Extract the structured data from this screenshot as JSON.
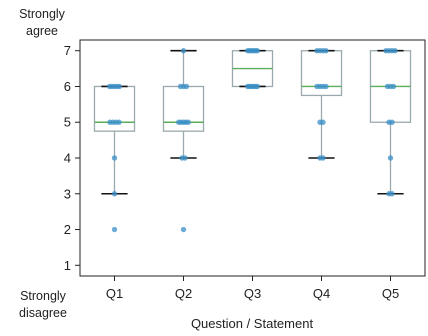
{
  "chart_data": {
    "type": "box",
    "xlabel": "Question / Statement",
    "ylabel_top": "Strongly agree",
    "ylabel_bottom": "Strongly disagree",
    "ylim": [
      0.7,
      7.3
    ],
    "yticks": [
      1,
      2,
      3,
      4,
      5,
      6,
      7
    ],
    "categories": [
      "Q1",
      "Q2",
      "Q3",
      "Q4",
      "Q5"
    ],
    "boxes": [
      {
        "category": "Q1",
        "whisker_low": 3,
        "q1": 4.75,
        "median": 5,
        "q3": 6,
        "whisker_high": 6,
        "points": [
          6,
          6,
          6,
          6,
          6,
          5,
          5,
          5,
          5,
          4,
          3,
          2
        ]
      },
      {
        "category": "Q2",
        "whisker_low": 4,
        "q1": 4.75,
        "median": 5,
        "q3": 6,
        "whisker_high": 7,
        "points": [
          7,
          6,
          6,
          6,
          5,
          5,
          5,
          5,
          5,
          4,
          4,
          2
        ]
      },
      {
        "category": "Q3",
        "whisker_low": 6,
        "q1": 6,
        "median": 6.5,
        "q3": 7,
        "whisker_high": 7,
        "points": [
          7,
          7,
          7,
          7,
          7,
          7,
          6,
          6,
          6,
          6,
          6,
          6
        ]
      },
      {
        "category": "Q4",
        "whisker_low": 4,
        "q1": 5.75,
        "median": 6,
        "q3": 7,
        "whisker_high": 7,
        "points": [
          7,
          7,
          7,
          7,
          6,
          6,
          6,
          6,
          5,
          5,
          4,
          4
        ]
      },
      {
        "category": "Q5",
        "whisker_low": 3,
        "q1": 5,
        "median": 6,
        "q3": 7,
        "whisker_high": 7,
        "points": [
          7,
          7,
          7,
          7,
          6,
          6,
          6,
          5,
          5,
          4,
          3,
          3
        ]
      }
    ],
    "colors": {
      "box_edge": "#9aa9ad",
      "median": "#5aad5a",
      "whisker_cap": "#111111",
      "points": "#3a8fc7",
      "axis": "#222222"
    }
  }
}
